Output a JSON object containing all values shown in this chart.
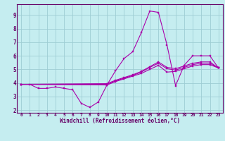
{
  "xlabel": "Windchill (Refroidissement éolien,°C)",
  "background_color": "#c5edf0",
  "grid_color": "#9ecdd4",
  "line_color": "#aa00aa",
  "spine_color": "#660066",
  "tick_color": "#660066",
  "xlim": [
    -0.5,
    23.5
  ],
  "ylim": [
    1.8,
    9.8
  ],
  "yticks": [
    2,
    3,
    4,
    5,
    6,
    7,
    8,
    9
  ],
  "xticks": [
    0,
    1,
    2,
    3,
    4,
    5,
    6,
    7,
    8,
    9,
    10,
    11,
    12,
    13,
    14,
    15,
    16,
    17,
    18,
    19,
    20,
    21,
    22,
    23
  ],
  "line1_x": [
    0,
    1,
    2,
    3,
    4,
    5,
    6,
    7,
    8,
    9,
    10,
    11,
    12,
    13,
    14,
    15,
    16,
    17,
    18,
    19,
    20,
    21,
    22,
    23
  ],
  "line1_y": [
    3.9,
    3.9,
    3.6,
    3.6,
    3.7,
    3.6,
    3.5,
    2.5,
    2.2,
    2.6,
    3.85,
    4.9,
    5.8,
    6.3,
    7.7,
    9.3,
    9.2,
    6.8,
    3.8,
    5.3,
    6.0,
    6.0,
    6.0,
    5.1
  ],
  "line2_x": [
    0,
    10,
    11,
    12,
    13,
    14,
    15,
    16,
    17,
    18,
    19,
    20,
    21,
    22,
    23
  ],
  "line2_y": [
    3.9,
    3.85,
    4.1,
    4.3,
    4.5,
    4.7,
    5.0,
    5.3,
    4.8,
    4.85,
    5.05,
    5.25,
    5.35,
    5.35,
    5.1
  ],
  "line3_x": [
    0,
    10,
    11,
    12,
    13,
    14,
    15,
    16,
    17,
    18,
    19,
    20,
    21,
    22,
    23
  ],
  "line3_y": [
    3.9,
    3.9,
    4.15,
    4.35,
    4.55,
    4.8,
    5.15,
    5.45,
    5.05,
    4.95,
    5.15,
    5.35,
    5.45,
    5.45,
    5.1
  ],
  "line4_x": [
    0,
    10,
    11,
    12,
    13,
    14,
    15,
    16,
    17,
    18,
    19,
    20,
    21,
    22,
    23
  ],
  "line4_y": [
    3.9,
    3.95,
    4.2,
    4.4,
    4.6,
    4.85,
    5.2,
    5.55,
    5.15,
    5.05,
    5.25,
    5.45,
    5.55,
    5.55,
    5.1
  ]
}
